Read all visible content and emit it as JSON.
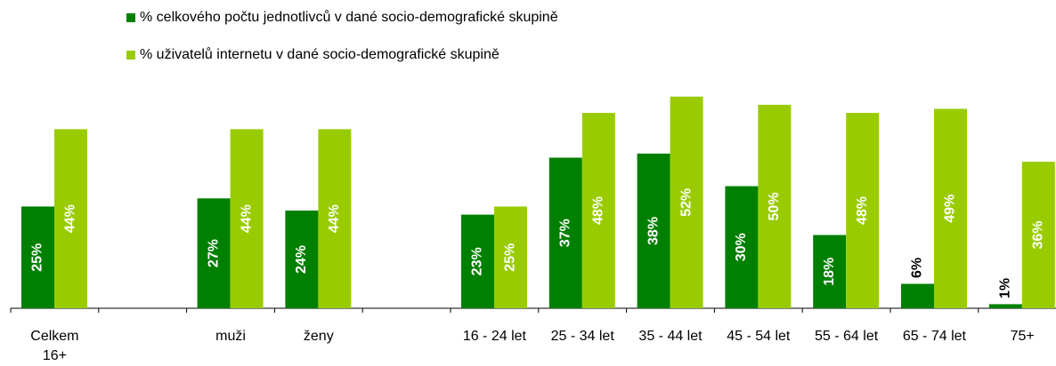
{
  "chart_data": {
    "type": "bar",
    "categories": [
      "Celkem 16+",
      null,
      "muži",
      "ženy",
      null,
      "16 - 24 let",
      "25 - 34 let",
      "35 - 44 let",
      "45 - 54 let",
      "55 - 64 let",
      "65 - 74 let",
      "75+"
    ],
    "series": [
      {
        "name": "% celkového počtu jednotlivců v dané socio-demografické skupině",
        "color": "#008000",
        "values": [
          25,
          null,
          27,
          24,
          null,
          23,
          37,
          38,
          30,
          18,
          6,
          1
        ],
        "value_labels": [
          "25%",
          null,
          "27%",
          "24%",
          null,
          "23%",
          "37%",
          "38%",
          "30%",
          "18%",
          "6%",
          "1%"
        ]
      },
      {
        "name": "% uživatelů internetu v dané socio-demografické skupině",
        "color": "#99cc00",
        "values": [
          44,
          null,
          44,
          44,
          null,
          25,
          48,
          52,
          50,
          48,
          49,
          36
        ],
        "value_labels": [
          "44%",
          null,
          "44%",
          "44%",
          null,
          "25%",
          "48%",
          "52%",
          "50%",
          "48%",
          "49%",
          "36%"
        ]
      }
    ],
    "ylim": [
      0,
      55
    ],
    "legend": "top"
  }
}
